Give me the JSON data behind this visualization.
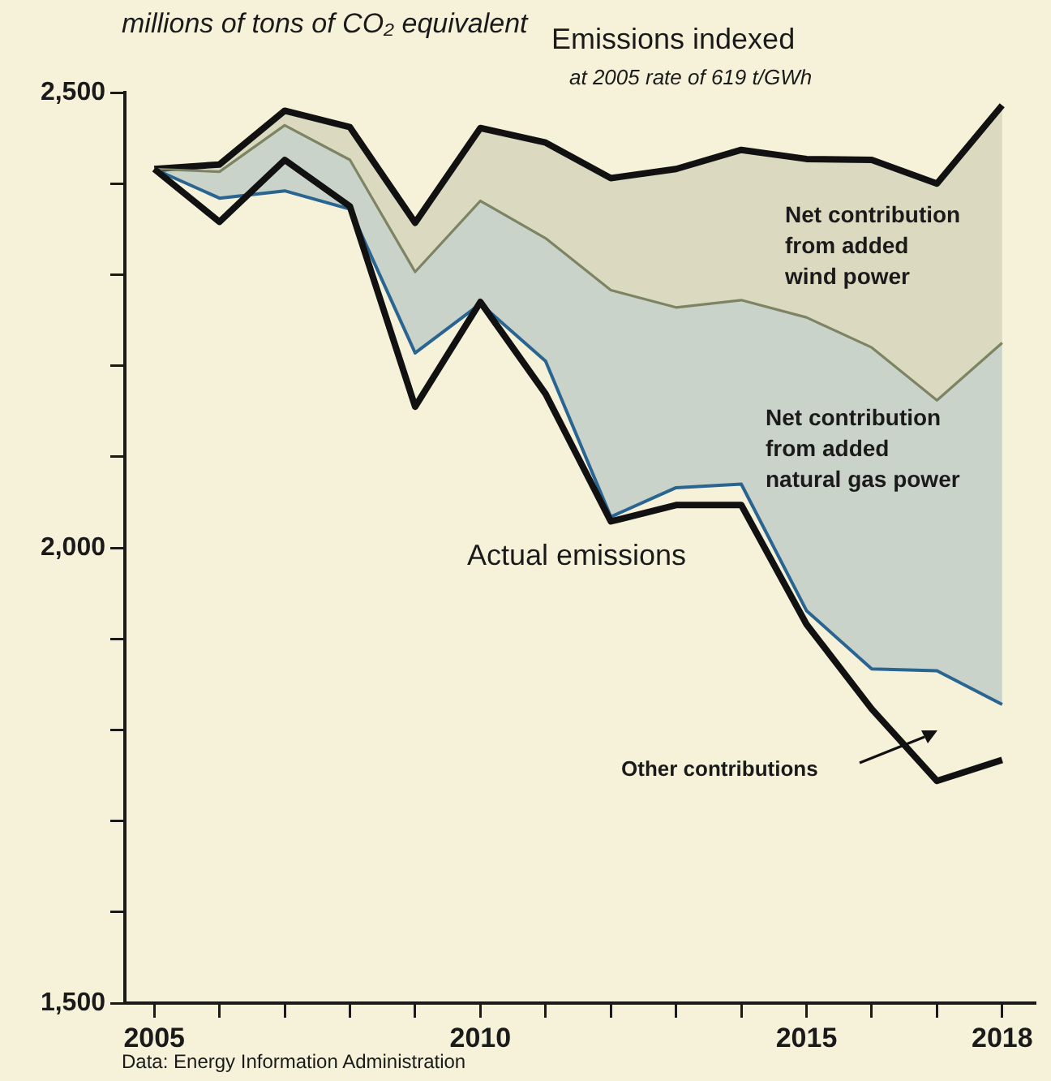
{
  "chart_data": {
    "type": "line",
    "ylabel": "millions of tons of CO₂ equivalent",
    "x": [
      2005,
      2006,
      2007,
      2008,
      2009,
      2010,
      2011,
      2012,
      2013,
      2014,
      2015,
      2016,
      2017,
      2018
    ],
    "series": [
      {
        "name": "Emissions indexed",
        "color": "#111111",
        "values": [
          2416,
          2421,
          2480,
          2462,
          2357,
          2461,
          2445,
          2406,
          2416,
          2437,
          2427,
          2426,
          2400,
          2486
        ]
      },
      {
        "name": "Net contribution from added wind power",
        "color": "#7d8463",
        "values": [
          2416,
          2413,
          2464,
          2426,
          2303,
          2381,
          2340,
          2283,
          2264,
          2272,
          2253,
          2220,
          2162,
          2225
        ],
        "lower": [
          2416,
          2413,
          2464,
          2426,
          2303,
          2381,
          2340,
          2283,
          2264,
          2272,
          2253,
          2220,
          2162,
          2225
        ],
        "upper": [
          2416,
          2421,
          2480,
          2462,
          2357,
          2461,
          2445,
          2406,
          2416,
          2437,
          2427,
          2426,
          2400,
          2486
        ]
      },
      {
        "name": "Net contribution from added natural gas power",
        "color": "#2a6592",
        "values": [
          2416,
          2384,
          2392,
          2372,
          2214,
          2268,
          2205,
          2034,
          2066,
          2070,
          1931,
          1867,
          1865,
          1828
        ],
        "lower": [
          2416,
          2384,
          2392,
          2372,
          2214,
          2268,
          2205,
          2034,
          2066,
          2070,
          1931,
          1867,
          1865,
          1828
        ],
        "upper": [
          2416,
          2413,
          2464,
          2426,
          2303,
          2381,
          2340,
          2283,
          2264,
          2272,
          2253,
          2220,
          2162,
          2225
        ]
      },
      {
        "name": "Actual emissions",
        "color": "#111111",
        "values": [
          2416,
          2358,
          2426,
          2375,
          2155,
          2270,
          2169,
          2029,
          2047,
          2047,
          1916,
          1823,
          1744,
          1767
        ]
      }
    ],
    "xlim": [
      2004.55,
      2018.5
    ],
    "xticks": [
      2005,
      {
        "value": 2006,
        "label": null
      },
      {
        "value": 2007,
        "label": null
      },
      {
        "value": 2008,
        "label": null
      },
      {
        "value": 2009,
        "label": null
      },
      2010,
      {
        "value": 2011,
        "label": null
      },
      {
        "value": 2012,
        "label": null
      },
      {
        "value": 2013,
        "label": null
      },
      {
        "value": 2014,
        "label": null
      },
      2015,
      {
        "value": 2016,
        "label": null
      },
      {
        "value": 2017,
        "label": null
      },
      2018
    ],
    "ylim": [
      1500,
      2500
    ],
    "yticks": [
      {
        "value": 1500,
        "label": "1,500"
      },
      {
        "value": 1600,
        "label": null
      },
      {
        "value": 1700,
        "label": null
      },
      {
        "value": 1800,
        "label": null
      },
      {
        "value": 1900,
        "label": null
      },
      {
        "value": 2000,
        "label": "2,000"
      },
      {
        "value": 2100,
        "label": null
      },
      {
        "value": 2200,
        "label": null
      },
      {
        "value": 2300,
        "label": null
      },
      {
        "value": 2400,
        "label": null
      },
      {
        "value": 2500,
        "label": "2,500"
      }
    ],
    "legend": false,
    "marker": "none",
    "line_style": "solid",
    "annotations": [
      "at 2005 rate of 619 t/GWh",
      "Other contributions",
      "Data: Energy Information Administration"
    ]
  }
}
